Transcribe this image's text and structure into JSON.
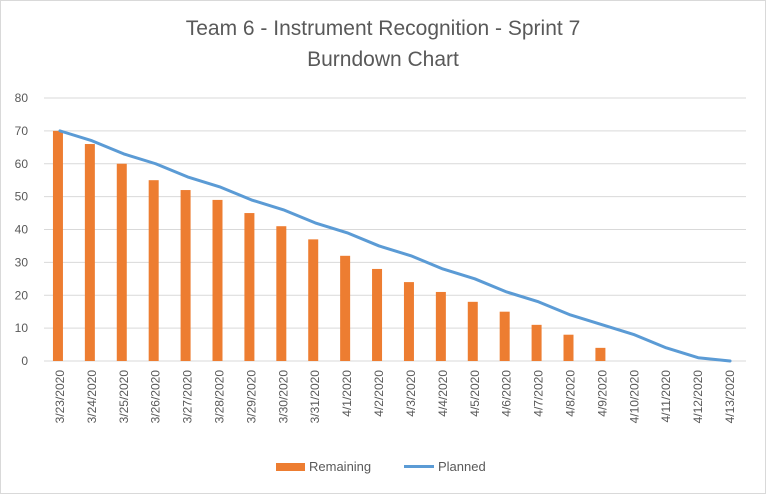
{
  "colors": {
    "remaining": "#ED7D31",
    "planned": "#5B9BD5",
    "grid": "#d9d9d9",
    "text": "#595959"
  },
  "chart_data": {
    "type": "bar",
    "title_line1": "Team 6 - Instrument Recognition - Sprint 7",
    "title_line2": "Burndown Chart",
    "categories": [
      "3/23/2020",
      "3/24/2020",
      "3/25/2020",
      "3/26/2020",
      "3/27/2020",
      "3/28/2020",
      "3/29/2020",
      "3/30/2020",
      "3/31/2020",
      "4/1/2020",
      "4/2/2020",
      "4/3/2020",
      "4/4/2020",
      "4/5/2020",
      "4/6/2020",
      "4/7/2020",
      "4/8/2020",
      "4/9/2020",
      "4/10/2020",
      "4/11/2020",
      "4/12/2020",
      "4/13/2020"
    ],
    "series": [
      {
        "name": "Remaining",
        "type": "bar",
        "values": [
          70,
          66,
          60,
          55,
          52,
          49,
          45,
          41,
          37,
          32,
          28,
          24,
          21,
          18,
          15,
          11,
          8,
          4,
          null,
          null,
          null,
          null
        ]
      },
      {
        "name": "Planned",
        "type": "line",
        "values": [
          70,
          67,
          63,
          60,
          56,
          53,
          49,
          46,
          42,
          39,
          35,
          32,
          28,
          25,
          21,
          18,
          14,
          11,
          8,
          4,
          1,
          0
        ]
      }
    ],
    "ylim": [
      0,
      80
    ],
    "yticks": [
      0,
      10,
      20,
      30,
      40,
      50,
      60,
      70,
      80
    ],
    "grid": true,
    "legend_position": "bottom"
  }
}
